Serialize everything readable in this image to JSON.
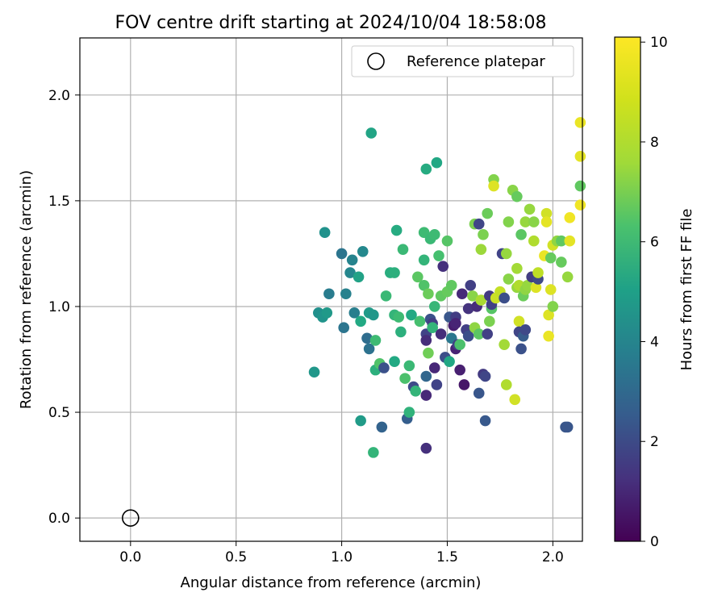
{
  "chart_data": {
    "type": "scatter",
    "title": "FOV centre drift starting at 2024/10/04 18:58:08",
    "xlabel": "Angular distance from reference (arcmin)",
    "ylabel": "Rotation from reference (arcmin)",
    "xlim": [
      -0.24,
      2.14
    ],
    "ylim": [
      -0.11,
      2.27
    ],
    "xticks": [
      "0.0",
      "0.5",
      "1.0",
      "1.5",
      "2.0"
    ],
    "yticks": [
      "0.0",
      "0.5",
      "1.0",
      "1.5",
      "2.0"
    ],
    "grid": true,
    "legend": {
      "position": "top-right",
      "entries": [
        "Reference platepar"
      ]
    },
    "reference_point": {
      "x": 0.0,
      "y": 0.0
    },
    "colorbar": {
      "label": "Hours from first FF file",
      "min": 0,
      "max": 10.1,
      "ticks": [
        "0",
        "2",
        "4",
        "6",
        "8",
        "10"
      ],
      "colormap": "viridis"
    },
    "points": [
      [
        0.87,
        0.69,
        5.3
      ],
      [
        0.89,
        0.97,
        5.0
      ],
      [
        0.91,
        0.95,
        5.2
      ],
      [
        0.92,
        1.35,
        5.1
      ],
      [
        0.93,
        0.97,
        5.4
      ],
      [
        0.94,
        1.06,
        4.2
      ],
      [
        1.0,
        1.25,
        3.9
      ],
      [
        1.01,
        0.9,
        3.9
      ],
      [
        1.02,
        1.06,
        4.4
      ],
      [
        1.04,
        1.16,
        4.6
      ],
      [
        1.05,
        1.22,
        4.5
      ],
      [
        1.06,
        0.97,
        4.3
      ],
      [
        1.08,
        1.14,
        5.8
      ],
      [
        1.09,
        0.46,
        5.5
      ],
      [
        1.09,
        0.93,
        6.1
      ],
      [
        1.1,
        1.26,
        4.7
      ],
      [
        1.12,
        0.85,
        3.6
      ],
      [
        1.13,
        0.97,
        5.5
      ],
      [
        1.13,
        0.8,
        3.8
      ],
      [
        1.14,
        1.82,
        5.9
      ],
      [
        1.15,
        0.96,
        5.3
      ],
      [
        1.15,
        0.31,
        6.6
      ],
      [
        1.16,
        0.7,
        6.4
      ],
      [
        1.16,
        0.84,
        6.9
      ],
      [
        1.18,
        0.73,
        7.3
      ],
      [
        1.19,
        0.43,
        3.2
      ],
      [
        1.2,
        0.71,
        2.5
      ],
      [
        1.21,
        1.05,
        6.8
      ],
      [
        1.23,
        1.16,
        6.3
      ],
      [
        1.25,
        1.16,
        6.4
      ],
      [
        1.25,
        0.96,
        6.6
      ],
      [
        1.25,
        0.74,
        6.1
      ],
      [
        1.26,
        1.36,
        6.2
      ],
      [
        1.27,
        0.95,
        6.9
      ],
      [
        1.28,
        0.88,
        6.4
      ],
      [
        1.29,
        1.27,
        6.8
      ],
      [
        1.3,
        0.66,
        7.2
      ],
      [
        1.31,
        0.47,
        3.0
      ],
      [
        1.32,
        0.5,
        6.5
      ],
      [
        1.32,
        0.72,
        6.8
      ],
      [
        1.33,
        0.96,
        6.1
      ],
      [
        1.34,
        0.62,
        2.3
      ],
      [
        1.35,
        0.6,
        6.6
      ],
      [
        1.36,
        1.14,
        7.5
      ],
      [
        1.37,
        0.93,
        7.1
      ],
      [
        1.39,
        1.35,
        6.9
      ],
      [
        1.39,
        1.22,
        6.6
      ],
      [
        1.39,
        1.1,
        7.3
      ],
      [
        1.4,
        0.87,
        2.0
      ],
      [
        1.4,
        0.84,
        1.3
      ],
      [
        1.4,
        0.67,
        3.3
      ],
      [
        1.4,
        0.58,
        1.2
      ],
      [
        1.4,
        0.33,
        1.4
      ],
      [
        1.4,
        1.65,
        6.2
      ],
      [
        1.41,
        1.06,
        7.8
      ],
      [
        1.41,
        0.78,
        7.9
      ],
      [
        1.42,
        1.32,
        6.8
      ],
      [
        1.42,
        0.94,
        2.5
      ],
      [
        1.43,
        0.92,
        1.8
      ],
      [
        1.43,
        0.9,
        6.6
      ],
      [
        1.44,
        1.34,
        6.9
      ],
      [
        1.44,
        1.0,
        6.7
      ],
      [
        1.44,
        0.71,
        1.1
      ],
      [
        1.45,
        1.68,
        6.0
      ],
      [
        1.45,
        0.63,
        2.0
      ],
      [
        1.46,
        1.24,
        7.1
      ],
      [
        1.47,
        1.05,
        7.6
      ],
      [
        1.47,
        0.87,
        1.3
      ],
      [
        1.48,
        1.19,
        1.4
      ],
      [
        1.49,
        0.76,
        2.4
      ],
      [
        1.5,
        1.31,
        7.4
      ],
      [
        1.5,
        1.07,
        7.7
      ],
      [
        1.51,
        0.95,
        2.7
      ],
      [
        1.51,
        0.74,
        6.0
      ],
      [
        1.52,
        1.1,
        7.6
      ],
      [
        1.52,
        0.85,
        4.0
      ],
      [
        1.53,
        0.91,
        0.8
      ],
      [
        1.54,
        0.95,
        1.8
      ],
      [
        1.54,
        0.8,
        1.0
      ],
      [
        1.54,
        0.92,
        1.0
      ],
      [
        1.55,
        0.82,
        1.9
      ],
      [
        1.56,
        0.82,
        7.2
      ],
      [
        1.56,
        0.7,
        0.9
      ],
      [
        1.57,
        1.06,
        1.2
      ],
      [
        1.58,
        0.63,
        0.6
      ],
      [
        1.59,
        0.89,
        1.9
      ],
      [
        1.6,
        0.99,
        1.5
      ],
      [
        1.6,
        0.86,
        2.4
      ],
      [
        1.61,
        1.1,
        1.9
      ],
      [
        1.62,
        1.05,
        8.3
      ],
      [
        1.63,
        1.39,
        8.1
      ],
      [
        1.63,
        0.9,
        8.4
      ],
      [
        1.64,
        1.0,
        1.3
      ],
      [
        1.65,
        0.59,
        2.7
      ],
      [
        1.65,
        1.39,
        2.1
      ],
      [
        1.65,
        0.87,
        7.5
      ],
      [
        1.66,
        1.27,
        8.6
      ],
      [
        1.66,
        1.03,
        8.8
      ],
      [
        1.67,
        1.34,
        8.1
      ],
      [
        1.67,
        0.68,
        1.7
      ],
      [
        1.68,
        0.67,
        2.1
      ],
      [
        1.68,
        0.46,
        2.8
      ],
      [
        1.69,
        1.44,
        7.8
      ],
      [
        1.69,
        0.87,
        1.9
      ],
      [
        1.7,
        0.93,
        8.1
      ],
      [
        1.7,
        1.05,
        1.7
      ],
      [
        1.71,
        0.99,
        7.4
      ],
      [
        1.71,
        1.01,
        1.9
      ],
      [
        1.72,
        1.6,
        8.2
      ],
      [
        1.72,
        1.57,
        9.6
      ],
      [
        1.73,
        1.04,
        9.3
      ],
      [
        1.75,
        1.07,
        9.2
      ],
      [
        1.76,
        1.25,
        2.0
      ],
      [
        1.77,
        0.82,
        8.7
      ],
      [
        1.77,
        1.04,
        2.4
      ],
      [
        1.78,
        1.25,
        8.5
      ],
      [
        1.78,
        0.63,
        8.9
      ],
      [
        1.79,
        1.4,
        8.2
      ],
      [
        1.79,
        1.13,
        8.3
      ],
      [
        1.81,
        1.55,
        8.3
      ],
      [
        1.82,
        0.56,
        9.4
      ],
      [
        1.83,
        1.09,
        8.5
      ],
      [
        1.83,
        1.18,
        8.7
      ],
      [
        1.83,
        1.52,
        7.7
      ],
      [
        1.84,
        1.1,
        8.9
      ],
      [
        1.84,
        0.93,
        9.4
      ],
      [
        1.84,
        0.88,
        2.1
      ],
      [
        1.85,
        0.8,
        2.5
      ],
      [
        1.85,
        1.34,
        7.5
      ],
      [
        1.86,
        1.05,
        7.8
      ],
      [
        1.86,
        0.86,
        2.9
      ],
      [
        1.87,
        1.4,
        8.5
      ],
      [
        1.87,
        1.08,
        8.4
      ],
      [
        1.87,
        0.89,
        2.2
      ],
      [
        1.88,
        1.1,
        8.5
      ],
      [
        1.89,
        1.46,
        8.5
      ],
      [
        1.9,
        1.14,
        8.8
      ],
      [
        1.9,
        1.14,
        1.8
      ],
      [
        1.91,
        1.31,
        8.9
      ],
      [
        1.91,
        1.4,
        8.3
      ],
      [
        1.92,
        1.09,
        9.6
      ],
      [
        1.93,
        1.13,
        2.2
      ],
      [
        1.93,
        1.16,
        9.1
      ],
      [
        1.96,
        1.24,
        9.8
      ],
      [
        1.97,
        1.44,
        9.4
      ],
      [
        1.97,
        1.4,
        9.7
      ],
      [
        1.98,
        0.96,
        9.6
      ],
      [
        1.98,
        0.86,
        9.8
      ],
      [
        1.99,
        1.08,
        9.6
      ],
      [
        1.99,
        1.23,
        7.7
      ],
      [
        2.0,
        1.29,
        9.4
      ],
      [
        2.0,
        1.0,
        8.2
      ],
      [
        2.02,
        1.31,
        8.4
      ],
      [
        2.04,
        1.31,
        7.6
      ],
      [
        2.04,
        1.21,
        7.7
      ],
      [
        2.06,
        0.43,
        2.7
      ],
      [
        2.07,
        0.43,
        2.7
      ],
      [
        2.07,
        1.14,
        8.5
      ],
      [
        2.08,
        1.42,
        9.9
      ],
      [
        2.08,
        1.31,
        9.7
      ],
      [
        2.13,
        1.87,
        9.8
      ],
      [
        2.13,
        1.71,
        9.7
      ],
      [
        2.13,
        1.57,
        7.6
      ],
      [
        2.13,
        1.48,
        9.9
      ]
    ]
  }
}
